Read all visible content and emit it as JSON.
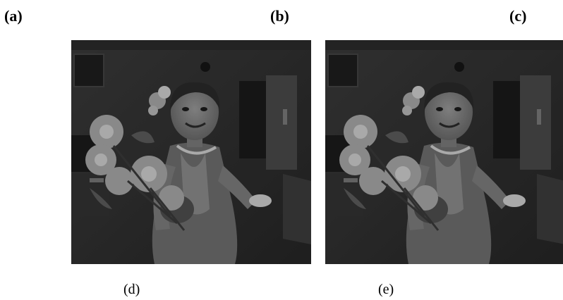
{
  "panel_labels": {
    "a": "(a)",
    "b": "(b)",
    "c": "(c)",
    "d": "(d)",
    "e": "(e)"
  },
  "images": [
    {
      "caption_key": "d",
      "subject": "grayscale-photo-girl-with-flowers"
    },
    {
      "caption_key": "e",
      "subject": "grayscale-photo-girl-with-flowers"
    }
  ],
  "colors": {
    "background": "#ffffff",
    "photo_dark": "#2b2b2b",
    "photo_mid": "#5a5a5a",
    "photo_light": "#a8a8a8",
    "photo_highlight": "#cfcfcf"
  }
}
